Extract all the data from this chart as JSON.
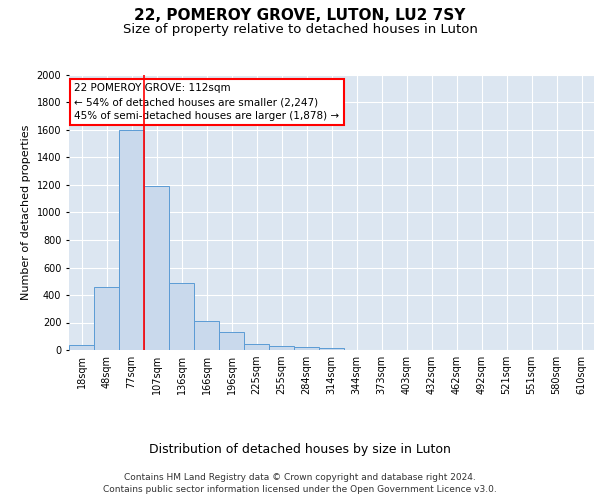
{
  "title1": "22, POMEROY GROVE, LUTON, LU2 7SY",
  "title2": "Size of property relative to detached houses in Luton",
  "xlabel": "Distribution of detached houses by size in Luton",
  "ylabel": "Number of detached properties",
  "bar_color": "#c9d9ec",
  "bar_edge_color": "#5b9bd5",
  "background_color": "#dce6f1",
  "grid_color": "#ffffff",
  "categories": [
    "18sqm",
    "48sqm",
    "77sqm",
    "107sqm",
    "136sqm",
    "166sqm",
    "196sqm",
    "225sqm",
    "255sqm",
    "284sqm",
    "314sqm",
    "344sqm",
    "373sqm",
    "403sqm",
    "432sqm",
    "462sqm",
    "492sqm",
    "521sqm",
    "551sqm",
    "580sqm",
    "610sqm"
  ],
  "values": [
    35,
    460,
    1600,
    1195,
    490,
    210,
    130,
    45,
    30,
    20,
    15,
    0,
    0,
    0,
    0,
    0,
    0,
    0,
    0,
    0,
    0
  ],
  "ylim": [
    0,
    2000
  ],
  "yticks": [
    0,
    200,
    400,
    600,
    800,
    1000,
    1200,
    1400,
    1600,
    1800,
    2000
  ],
  "property_label": "22 POMEROY GROVE: 112sqm",
  "annotation_line1": "← 54% of detached houses are smaller (2,247)",
  "annotation_line2": "45% of semi-detached houses are larger (1,878) →",
  "red_line_bar_index": 2,
  "footnote_line1": "Contains HM Land Registry data © Crown copyright and database right 2024.",
  "footnote_line2": "Contains public sector information licensed under the Open Government Licence v3.0.",
  "title1_fontsize": 11,
  "title2_fontsize": 9.5,
  "xlabel_fontsize": 9,
  "ylabel_fontsize": 8,
  "tick_fontsize": 7,
  "annotation_fontsize": 7.5,
  "footnote_fontsize": 6.5
}
